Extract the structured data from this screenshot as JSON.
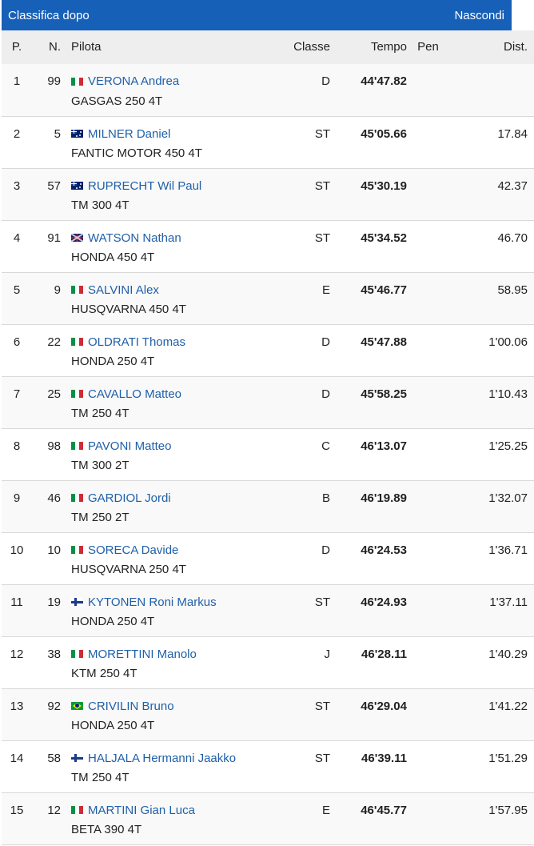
{
  "header": {
    "title": "Classifica dopo",
    "hide_label": "Nascondi",
    "bar_color": "#1760b8"
  },
  "columns": {
    "pos": "P.",
    "num": "N.",
    "rider": "Pilota",
    "class": "Classe",
    "time": "Tempo",
    "pen": "Pen",
    "dist": "Dist."
  },
  "rows": [
    {
      "pos": "1",
      "num": "99",
      "flag": "it",
      "rider": "VERONA Andrea",
      "bike": "GASGAS 250 4T",
      "class": "D",
      "time": "44'47.82",
      "pen": "",
      "dist": ""
    },
    {
      "pos": "2",
      "num": "5",
      "flag": "au",
      "rider": "MILNER Daniel",
      "bike": "FANTIC MOTOR 450 4T",
      "class": "ST",
      "time": "45'05.66",
      "pen": "",
      "dist": "17.84"
    },
    {
      "pos": "3",
      "num": "57",
      "flag": "au",
      "rider": "RUPRECHT Wil Paul",
      "bike": "TM 300 4T",
      "class": "ST",
      "time": "45'30.19",
      "pen": "",
      "dist": "42.37"
    },
    {
      "pos": "4",
      "num": "91",
      "flag": "gb",
      "rider": "WATSON Nathan",
      "bike": "HONDA 450 4T",
      "class": "ST",
      "time": "45'34.52",
      "pen": "",
      "dist": "46.70"
    },
    {
      "pos": "5",
      "num": "9",
      "flag": "it",
      "rider": "SALVINI Alex",
      "bike": "HUSQVARNA 450 4T",
      "class": "E",
      "time": "45'46.77",
      "pen": "",
      "dist": "58.95"
    },
    {
      "pos": "6",
      "num": "22",
      "flag": "it",
      "rider": "OLDRATI Thomas",
      "bike": "HONDA 250 4T",
      "class": "D",
      "time": "45'47.88",
      "pen": "",
      "dist": "1'00.06"
    },
    {
      "pos": "7",
      "num": "25",
      "flag": "it",
      "rider": "CAVALLO Matteo",
      "bike": "TM 250 4T",
      "class": "D",
      "time": "45'58.25",
      "pen": "",
      "dist": "1'10.43"
    },
    {
      "pos": "8",
      "num": "98",
      "flag": "it",
      "rider": "PAVONI Matteo",
      "bike": "TM 300 2T",
      "class": "C",
      "time": "46'13.07",
      "pen": "",
      "dist": "1'25.25"
    },
    {
      "pos": "9",
      "num": "46",
      "flag": "it",
      "rider": "GARDIOL Jordi",
      "bike": "TM 250 2T",
      "class": "B",
      "time": "46'19.89",
      "pen": "",
      "dist": "1'32.07"
    },
    {
      "pos": "10",
      "num": "10",
      "flag": "it",
      "rider": "SORECA Davide",
      "bike": "HUSQVARNA 250 4T",
      "class": "D",
      "time": "46'24.53",
      "pen": "",
      "dist": "1'36.71"
    },
    {
      "pos": "11",
      "num": "19",
      "flag": "fi",
      "rider": "KYTONEN Roni Markus",
      "bike": "HONDA 250 4T",
      "class": "ST",
      "time": "46'24.93",
      "pen": "",
      "dist": "1'37.11"
    },
    {
      "pos": "12",
      "num": "38",
      "flag": "it",
      "rider": "MORETTINI Manolo",
      "bike": "KTM 250 4T",
      "class": "J",
      "time": "46'28.11",
      "pen": "",
      "dist": "1'40.29"
    },
    {
      "pos": "13",
      "num": "92",
      "flag": "br",
      "rider": "CRIVILIN Bruno",
      "bike": "HONDA 250 4T",
      "class": "ST",
      "time": "46'29.04",
      "pen": "",
      "dist": "1'41.22"
    },
    {
      "pos": "14",
      "num": "58",
      "flag": "fi",
      "rider": "HALJALA Hermanni Jaakko",
      "bike": "TM 250 4T",
      "class": "ST",
      "time": "46'39.11",
      "pen": "",
      "dist": "1'51.29"
    },
    {
      "pos": "15",
      "num": "12",
      "flag": "it",
      "rider": "MARTINI Gian Luca",
      "bike": "BETA 390 4T",
      "class": "E",
      "time": "46'45.77",
      "pen": "",
      "dist": "1'57.95"
    }
  ]
}
